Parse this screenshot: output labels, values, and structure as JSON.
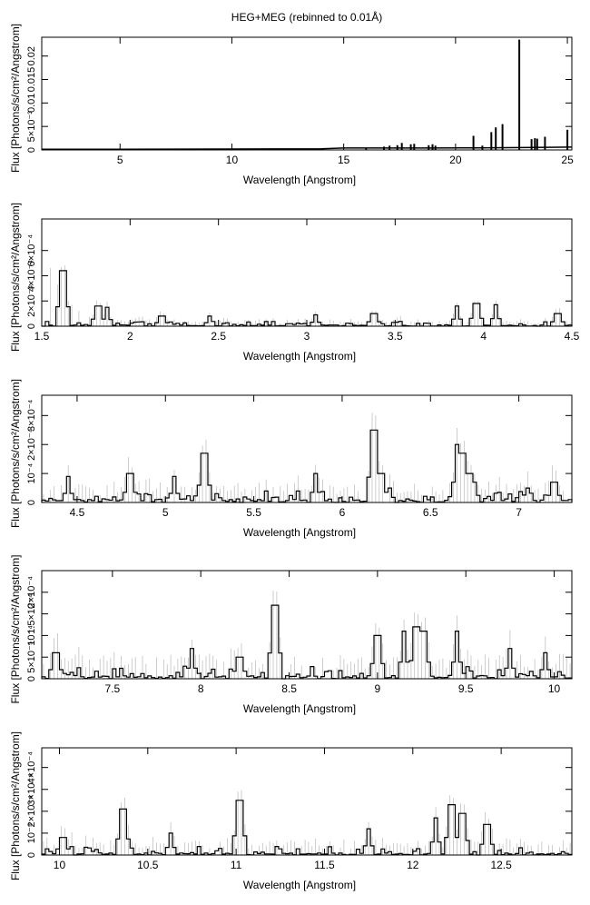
{
  "figure": {
    "title": "HEG+MEG (rebinned to 0.01Å)"
  },
  "chart_data": [
    {
      "type": "line",
      "xlabel": "Wavelength [Angstrom]",
      "ylabel": "Flux [Photons/s/cm²/Angstrom]",
      "xlim": [
        1.5,
        25.2
      ],
      "ylim": [
        0,
        0.024
      ],
      "xticks": [
        {
          "v": 5,
          "label": "5"
        },
        {
          "v": 10,
          "label": "10"
        },
        {
          "v": 15,
          "label": "15"
        },
        {
          "v": 20,
          "label": "20"
        },
        {
          "v": 25,
          "label": "25"
        }
      ],
      "yticks": [
        {
          "v": 0,
          "label": "0"
        },
        {
          "v": 0.005,
          "label": "5×10⁻³"
        },
        {
          "v": 0.01,
          "label": "0.01"
        },
        {
          "v": 0.015,
          "label": "0.015"
        },
        {
          "v": 0.02,
          "label": "0.02"
        }
      ],
      "lines": [
        {
          "x": 16.0,
          "y": 0.0004
        },
        {
          "x": 16.8,
          "y": 0.0007
        },
        {
          "x": 17.05,
          "y": 0.0009
        },
        {
          "x": 17.4,
          "y": 0.001
        },
        {
          "x": 17.6,
          "y": 0.0015
        },
        {
          "x": 18.0,
          "y": 0.0012
        },
        {
          "x": 18.15,
          "y": 0.0013
        },
        {
          "x": 18.8,
          "y": 0.001
        },
        {
          "x": 18.97,
          "y": 0.0012
        },
        {
          "x": 19.1,
          "y": 0.0009
        },
        {
          "x": 20.8,
          "y": 0.003
        },
        {
          "x": 21.2,
          "y": 0.0009
        },
        {
          "x": 21.6,
          "y": 0.0038
        },
        {
          "x": 21.8,
          "y": 0.0048
        },
        {
          "x": 22.1,
          "y": 0.0055
        },
        {
          "x": 22.85,
          "y": 0.0235
        },
        {
          "x": 23.4,
          "y": 0.0023
        },
        {
          "x": 23.55,
          "y": 0.0025
        },
        {
          "x": 23.65,
          "y": 0.0024
        },
        {
          "x": 24.0,
          "y": 0.0028
        },
        {
          "x": 25.0,
          "y": 0.0043
        }
      ],
      "baseline": [
        [
          1.5,
          0.00015
        ],
        [
          5,
          0.00015
        ],
        [
          10,
          0.0002
        ],
        [
          14,
          0.00025
        ],
        [
          15,
          0.0004
        ],
        [
          17,
          0.0004
        ],
        [
          19,
          0.0004
        ],
        [
          21,
          0.00045
        ],
        [
          23,
          0.0005
        ],
        [
          25.2,
          0.0006
        ]
      ]
    },
    {
      "type": "line",
      "xlabel": "Wavelength [Angstrom]",
      "ylabel": "Flux [Photons/s/cm²/Angstrom]",
      "xlim": [
        1.5,
        4.5
      ],
      "ylim": [
        0,
        0.00085
      ],
      "xticks": [
        {
          "v": 1.5,
          "label": "1.5"
        },
        {
          "v": 2,
          "label": "2"
        },
        {
          "v": 2.5,
          "label": "2.5"
        },
        {
          "v": 3,
          "label": "3"
        },
        {
          "v": 3.5,
          "label": "3.5"
        },
        {
          "v": 4,
          "label": "4"
        },
        {
          "v": 4.5,
          "label": "4.5"
        }
      ],
      "yticks": [
        {
          "v": 0,
          "label": "0"
        },
        {
          "v": 0.0002,
          "label": "2×10⁻⁴"
        },
        {
          "v": 0.0004,
          "label": "4×10⁻⁴"
        },
        {
          "v": 0.0006,
          "label": "6×10⁻⁴"
        }
      ],
      "peaks": [
        {
          "x": 1.62,
          "y": 0.00044
        },
        {
          "x": 1.82,
          "y": 0.00016
        },
        {
          "x": 1.87,
          "y": 0.00015
        },
        {
          "x": 2.18,
          "y": 8e-05
        },
        {
          "x": 2.45,
          "y": 8e-05
        },
        {
          "x": 3.05,
          "y": 9e-05
        },
        {
          "x": 3.38,
          "y": 0.0001
        },
        {
          "x": 3.85,
          "y": 0.00016
        },
        {
          "x": 3.96,
          "y": 0.00018
        },
        {
          "x": 4.07,
          "y": 0.00017
        },
        {
          "x": 4.42,
          "y": 0.0001
        }
      ],
      "noise": 4e-05,
      "errorscale": 4.5e-05,
      "errordecay": [
        0.0007,
        1.5,
        0.12
      ]
    },
    {
      "type": "line",
      "xlabel": "Wavelength [Angstrom]",
      "ylabel": "Flux [Photons/s/cm²/Angstrom]",
      "xlim": [
        4.3,
        7.3
      ],
      "ylim": [
        0,
        0.00037
      ],
      "xticks": [
        {
          "v": 4.5,
          "label": "4.5"
        },
        {
          "v": 5,
          "label": "5"
        },
        {
          "v": 5.5,
          "label": "5.5"
        },
        {
          "v": 6,
          "label": "6"
        },
        {
          "v": 6.5,
          "label": "6.5"
        },
        {
          "v": 7,
          "label": "7"
        }
      ],
      "yticks": [
        {
          "v": 0,
          "label": "0"
        },
        {
          "v": 0.0001,
          "label": "10⁻⁴"
        },
        {
          "v": 0.0002,
          "label": "2×10⁻⁴"
        },
        {
          "v": 0.0003,
          "label": "3×10⁻⁴"
        }
      ],
      "peaks": [
        {
          "x": 4.45,
          "y": 9e-05
        },
        {
          "x": 4.8,
          "y": 0.0001
        },
        {
          "x": 5.05,
          "y": 9e-05
        },
        {
          "x": 5.22,
          "y": 0.00017
        },
        {
          "x": 5.85,
          "y": 0.0001
        },
        {
          "x": 6.18,
          "y": 0.00025
        },
        {
          "x": 6.22,
          "y": 0.0001
        },
        {
          "x": 6.27,
          "y": 5e-05
        },
        {
          "x": 6.65,
          "y": 0.0002
        },
        {
          "x": 6.68,
          "y": 0.00017
        },
        {
          "x": 6.72,
          "y": 0.0001
        },
        {
          "x": 6.75,
          "y": 7e-05
        },
        {
          "x": 7.05,
          "y": 5e-05
        },
        {
          "x": 7.2,
          "y": 7e-05
        }
      ],
      "noise": 4e-05,
      "errorscale": 6e-05
    },
    {
      "type": "line",
      "xlabel": "Wavelength [Angstrom]",
      "ylabel": "Flux [Photons/s/cm²/Angstrom]",
      "xlim": [
        7.1,
        10.1
      ],
      "ylim": [
        0,
        0.00025
      ],
      "xticks": [
        {
          "v": 7.5,
          "label": "7.5"
        },
        {
          "v": 8,
          "label": "8"
        },
        {
          "v": 8.5,
          "label": "8.5"
        },
        {
          "v": 9,
          "label": "9"
        },
        {
          "v": 9.5,
          "label": "9.5"
        },
        {
          "v": 10,
          "label": "10"
        }
      ],
      "yticks": [
        {
          "v": 0,
          "label": "0"
        },
        {
          "v": 5e-05,
          "label": "5×10⁻⁵"
        },
        {
          "v": 0.0001,
          "label": "10⁻⁴"
        },
        {
          "v": 0.00015,
          "label": "1.5×10⁻⁴"
        },
        {
          "v": 0.0002,
          "label": "2×10⁻⁴"
        }
      ],
      "peaks": [
        {
          "x": 7.18,
          "y": 6e-05
        },
        {
          "x": 7.95,
          "y": 7e-05
        },
        {
          "x": 8.22,
          "y": 5e-05
        },
        {
          "x": 8.42,
          "y": 0.00017
        },
        {
          "x": 9.0,
          "y": 0.0001
        },
        {
          "x": 9.15,
          "y": 0.00011
        },
        {
          "x": 9.22,
          "y": 0.00012
        },
        {
          "x": 9.26,
          "y": 0.00011
        },
        {
          "x": 9.45,
          "y": 0.00011
        },
        {
          "x": 9.75,
          "y": 7e-05
        },
        {
          "x": 9.95,
          "y": 6e-05
        }
      ],
      "noise": 3e-05,
      "errorscale": 5e-05
    },
    {
      "type": "line",
      "xlabel": "Wavelength [Angstrom]",
      "ylabel": "Flux [Photons/s/cm²/Angstrom]",
      "xlim": [
        9.9,
        12.9
      ],
      "ylim": [
        0,
        0.00049
      ],
      "xticks": [
        {
          "v": 10,
          "label": "10"
        },
        {
          "v": 10.5,
          "label": "10.5"
        },
        {
          "v": 11,
          "label": "11"
        },
        {
          "v": 11.5,
          "label": "11.5"
        },
        {
          "v": 12,
          "label": "12"
        },
        {
          "v": 12.5,
          "label": "12.5"
        }
      ],
      "yticks": [
        {
          "v": 0,
          "label": "0"
        },
        {
          "v": 0.0001,
          "label": "10⁻⁴"
        },
        {
          "v": 0.0002,
          "label": "2×10⁻⁴"
        },
        {
          "v": 0.0003,
          "label": "3×10⁻⁴"
        },
        {
          "v": 0.0004,
          "label": "4×10⁻⁴"
        }
      ],
      "peaks": [
        {
          "x": 10.02,
          "y": 8e-05
        },
        {
          "x": 10.36,
          "y": 0.00021
        },
        {
          "x": 10.63,
          "y": 0.0001
        },
        {
          "x": 11.02,
          "y": 0.00025
        },
        {
          "x": 11.75,
          "y": 0.00012
        },
        {
          "x": 12.13,
          "y": 0.00017
        },
        {
          "x": 12.22,
          "y": 0.00023
        },
        {
          "x": 12.28,
          "y": 0.00019
        },
        {
          "x": 12.42,
          "y": 0.00014
        }
      ],
      "noise": 4e-05,
      "errorscale": 7e-05
    }
  ]
}
